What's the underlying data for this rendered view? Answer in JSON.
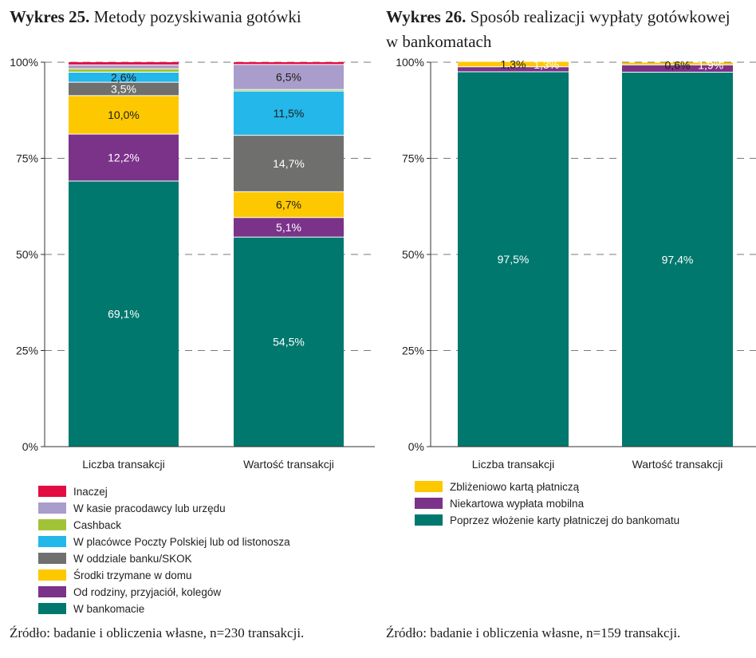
{
  "left": {
    "title_bold": "Wykres 25.",
    "title_rest": "Metody pozyskiwania gotówki",
    "source": "Źródło: badanie i obliczenia własne, n=230 transakcji."
  },
  "right": {
    "title_bold": "Wykres 26.",
    "title_rest": "Sposób realizacji wypłaty gotówkowej w bankomatach",
    "source": "Źródło: badanie i obliczenia własne, n=159 transakcji."
  },
  "chart_data": [
    {
      "type": "bar",
      "stacked": true,
      "title": "Wykres 25. Metody pozyskiwania gotówki",
      "categories": [
        "Liczba transakcji",
        "Wartość transakcji"
      ],
      "y_ticks": [
        "0%",
        "25%",
        "50%",
        "75%",
        "100%"
      ],
      "ylim": [
        0,
        100
      ],
      "grid": "dashed horizontal",
      "legend_position": "bottom",
      "series": [
        {
          "name": "W bankomacie",
          "color": "#00786e",
          "values": [
            69.1,
            54.5
          ],
          "labels": [
            "69,1%",
            "54,5%"
          ],
          "label_color": "#ffffff"
        },
        {
          "name": "Od rodziny, przyjaciół, kolegów",
          "color": "#7b3289",
          "values": [
            12.2,
            5.1
          ],
          "labels": [
            "12,2%",
            "5,1%"
          ],
          "label_color": "#ffffff"
        },
        {
          "name": "Środki trzymane w domu",
          "color": "#fdc800",
          "values": [
            10.0,
            6.7
          ],
          "labels": [
            "10,0%",
            "6,7%"
          ],
          "label_color": "#1d1d1b"
        },
        {
          "name": "W oddziale banku/SKOK",
          "color": "#6f6f6e",
          "values": [
            3.5,
            14.7
          ],
          "labels": [
            "3,5%",
            "14,7%"
          ],
          "label_color": "#ffffff"
        },
        {
          "name": "W placówce Poczty Polskiej lub od listonosza",
          "color": "#24b7ea",
          "values": [
            2.6,
            11.5
          ],
          "labels": [
            "2,6%",
            "11,5%"
          ],
          "label_color": "#1d1d1b"
        },
        {
          "name": "Cashback",
          "color": "#a1c436",
          "values": [
            0.9,
            0.4
          ],
          "labels": [
            null,
            null
          ],
          "label_color": "#1d1d1b"
        },
        {
          "name": "W kasie pracodawcy lub urzędu",
          "color": "#a99dcb",
          "values": [
            1.0,
            6.5
          ],
          "labels": [
            null,
            "6,5%"
          ],
          "label_color": "#1d1d1b"
        },
        {
          "name": "Inaczej",
          "color": "#e30c43",
          "values": [
            0.7,
            0.6
          ],
          "labels": [
            null,
            null
          ],
          "label_color": "#ffffff"
        }
      ]
    },
    {
      "type": "bar",
      "stacked": true,
      "title": "Wykres 26. Sposób realizacji wypłaty gotówkowej w bankomatach",
      "categories": [
        "Liczba transakcji",
        "Wartość transakcji"
      ],
      "y_ticks": [
        "0%",
        "25%",
        "50%",
        "75%",
        "100%"
      ],
      "ylim": [
        0,
        100
      ],
      "grid": "dashed horizontal",
      "legend_position": "bottom",
      "series": [
        {
          "name": "Poprzez włożenie karty płatniczej do bankomatu",
          "color": "#00786e",
          "values": [
            97.5,
            97.4
          ],
          "labels": [
            "97,5%",
            "97,4%"
          ],
          "label_color": "#ffffff"
        },
        {
          "name": "Niekartowa wypłata mobilna",
          "color": "#7b3289",
          "values": [
            1.3,
            1.9
          ],
          "labels": [
            "1,3%",
            "1,9%"
          ],
          "label_color": "#ffffff"
        },
        {
          "name": "Zbliżeniowo kartą płatniczą",
          "color": "#fdc800",
          "values": [
            1.3,
            0.6
          ],
          "labels": [
            "1,3%",
            "0,6%"
          ],
          "label_color": "#1d1d1b"
        }
      ]
    }
  ]
}
